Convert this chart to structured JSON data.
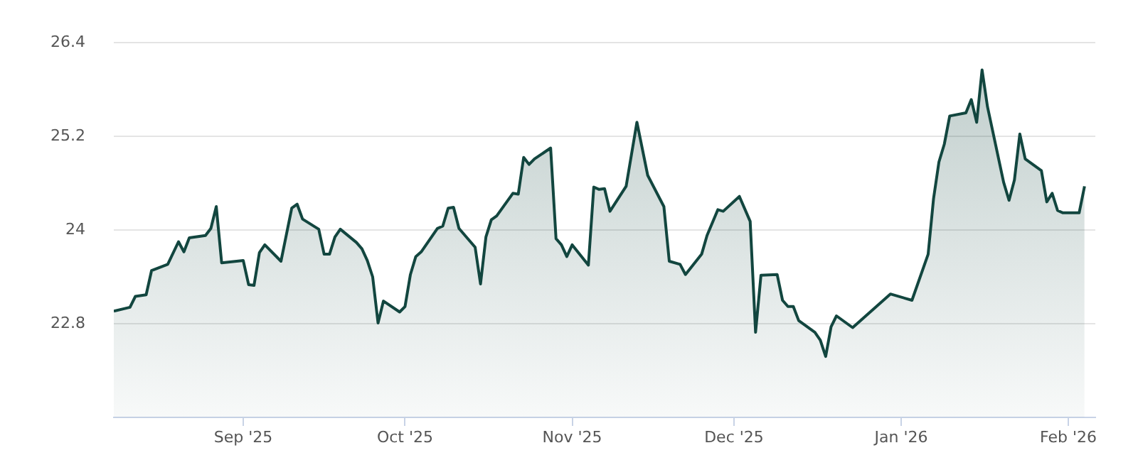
{
  "chart_data": {
    "type": "area",
    "x": [
      "2025-08-08",
      "2025-08-11",
      "2025-08-12",
      "2025-08-14",
      "2025-08-15",
      "2025-08-18",
      "2025-08-20",
      "2025-08-21",
      "2025-08-22",
      "2025-08-25",
      "2025-08-26",
      "2025-08-27",
      "2025-08-28",
      "2025-09-01",
      "2025-09-02",
      "2025-09-03",
      "2025-09-04",
      "2025-09-05",
      "2025-09-08",
      "2025-09-10",
      "2025-09-11",
      "2025-09-12",
      "2025-09-15",
      "2025-09-16",
      "2025-09-17",
      "2025-09-18",
      "2025-09-19",
      "2025-09-22",
      "2025-09-23",
      "2025-09-24",
      "2025-09-25",
      "2025-09-26",
      "2025-09-27",
      "2025-09-30",
      "2025-10-01",
      "2025-10-02",
      "2025-10-03",
      "2025-10-04",
      "2025-10-07",
      "2025-10-08",
      "2025-10-09",
      "2025-10-10",
      "2025-10-11",
      "2025-10-14",
      "2025-10-15",
      "2025-10-16",
      "2025-10-17",
      "2025-10-18",
      "2025-10-21",
      "2025-10-22",
      "2025-10-23",
      "2025-10-24",
      "2025-10-25",
      "2025-10-28",
      "2025-10-29",
      "2025-10-30",
      "2025-10-31",
      "2025-11-01",
      "2025-11-04",
      "2025-11-05",
      "2025-11-06",
      "2025-11-07",
      "2025-11-08",
      "2025-11-11",
      "2025-11-13",
      "2025-11-15",
      "2025-11-18",
      "2025-11-19",
      "2025-11-21",
      "2025-11-22",
      "2025-11-25",
      "2025-11-26",
      "2025-11-28",
      "2025-11-29",
      "2025-12-02",
      "2025-12-04",
      "2025-12-05",
      "2025-12-06",
      "2025-12-09",
      "2025-12-10",
      "2025-12-11",
      "2025-12-12",
      "2025-12-13",
      "2025-12-16",
      "2025-12-17",
      "2025-12-18",
      "2025-12-19",
      "2025-12-20",
      "2025-12-23",
      "2025-12-30",
      "2026-01-03",
      "2026-01-06",
      "2026-01-07",
      "2026-01-08",
      "2026-01-09",
      "2026-01-10",
      "2026-01-13",
      "2026-01-14",
      "2026-01-15",
      "2026-01-16",
      "2026-01-17",
      "2026-01-20",
      "2026-01-21",
      "2026-01-22",
      "2026-01-23",
      "2026-01-24",
      "2026-01-27",
      "2026-01-28",
      "2026-01-29",
      "2026-01-30",
      "2026-01-31",
      "2026-02-03",
      "2026-02-04"
    ],
    "series": [
      {
        "color": "#12463f",
        "values": [
          22.96,
          23.01,
          23.15,
          23.17,
          23.48,
          23.56,
          23.85,
          23.72,
          23.9,
          23.93,
          24.02,
          24.3,
          23.58,
          23.61,
          23.3,
          23.29,
          23.71,
          23.81,
          23.6,
          24.28,
          24.33,
          24.14,
          24.01,
          23.69,
          23.69,
          23.91,
          24.01,
          23.84,
          23.76,
          23.61,
          23.4,
          22.81,
          23.09,
          22.95,
          23.02,
          23.43,
          23.66,
          23.72,
          24.02,
          24.05,
          24.28,
          24.29,
          24.02,
          23.78,
          23.31,
          23.91,
          24.13,
          24.18,
          24.47,
          24.46,
          24.93,
          24.84,
          24.91,
          25.05,
          23.89,
          23.81,
          23.66,
          23.81,
          23.55,
          24.55,
          24.52,
          24.53,
          24.24,
          24.56,
          25.38,
          24.7,
          24.3,
          23.6,
          23.56,
          23.43,
          23.69,
          23.93,
          24.26,
          24.24,
          24.43,
          24.11,
          22.69,
          23.42,
          23.43,
          23.1,
          23.02,
          23.02,
          22.84,
          22.69,
          22.59,
          22.38,
          22.76,
          22.9,
          22.75,
          23.18,
          23.1,
          23.69,
          24.4,
          24.87,
          25.1,
          25.46,
          25.5,
          25.67,
          25.38,
          26.05,
          25.58,
          24.61,
          24.38,
          24.64,
          25.23,
          24.91,
          24.76,
          24.36,
          24.47,
          24.25,
          24.22,
          24.22,
          24.56
        ]
      }
    ],
    "xlim": [
      "2025-08-08",
      "2026-02-06"
    ],
    "xticks": [
      {
        "value": "2025-09-01",
        "label": "Sep '25"
      },
      {
        "value": "2025-10-01",
        "label": "Oct '25"
      },
      {
        "value": "2025-11-01",
        "label": "Nov '25"
      },
      {
        "value": "2025-12-01",
        "label": "Dec '25"
      },
      {
        "value": "2026-01-01",
        "label": "Jan '26"
      },
      {
        "value": "2026-02-01",
        "label": "Feb '26"
      }
    ],
    "ylim": [
      21.6,
      26.4
    ],
    "yticks": [
      22.8,
      24,
      25.2,
      26.4
    ],
    "grid": "y",
    "legend": false,
    "marker": "none",
    "line_style": "solid"
  }
}
